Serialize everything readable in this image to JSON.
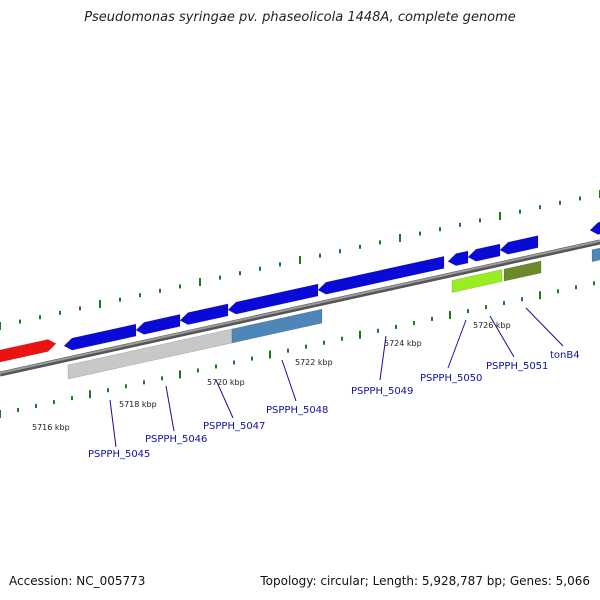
{
  "title": "Pseudomonas syringae pv. phaseolicola 1448A, complete genome",
  "footer": {
    "accession": "Accession: NC_005773",
    "stats": "Topology: circular; Length: 5,928,787 bp; Genes: 5,066"
  },
  "kbp_labels": [
    "5716 kbp",
    "5718 kbp",
    "5720 kbp",
    "5722 kbp",
    "5724 kbp",
    "5726 kbp"
  ],
  "gene_labels": [
    "PSPPH_5045",
    "PSPPH_5046",
    "PSPPH_5047",
    "PSPPH_5048",
    "PSPPH_5049",
    "PSPPH_5050",
    "PSPPH_5051",
    "tonB4"
  ],
  "colors": {
    "cds_forward": "#0a0ad8",
    "highlight": "#ee1111",
    "gray_feature": "#c8c8c8",
    "steel_feature": "#4f86b8",
    "lime_feature": "#99ee22",
    "olive_feature": "#6b8a2a",
    "backbone": "#808080",
    "tick": "#1a7a1a",
    "label": "#1010a0"
  }
}
